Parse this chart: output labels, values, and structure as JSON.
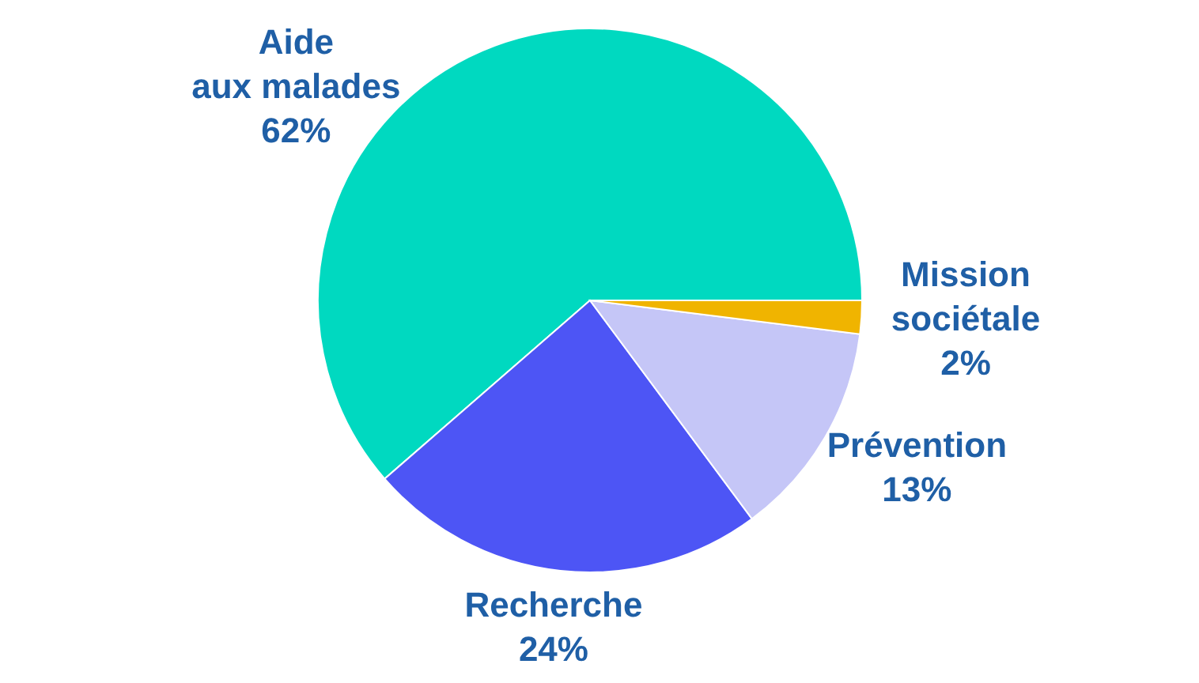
{
  "chart_data": {
    "type": "pie",
    "categories": [
      "Aide\naux malades",
      "Recherche",
      "Prévention",
      "Mission\nsociétale"
    ],
    "values": [
      62,
      24,
      13,
      2
    ],
    "colors": [
      "#00d9c0",
      "#4d55f5",
      "#c5c6f7",
      "#f0b400"
    ],
    "value_labels": [
      "62%",
      "24%",
      "13%",
      "2%"
    ],
    "legend": false
  }
}
